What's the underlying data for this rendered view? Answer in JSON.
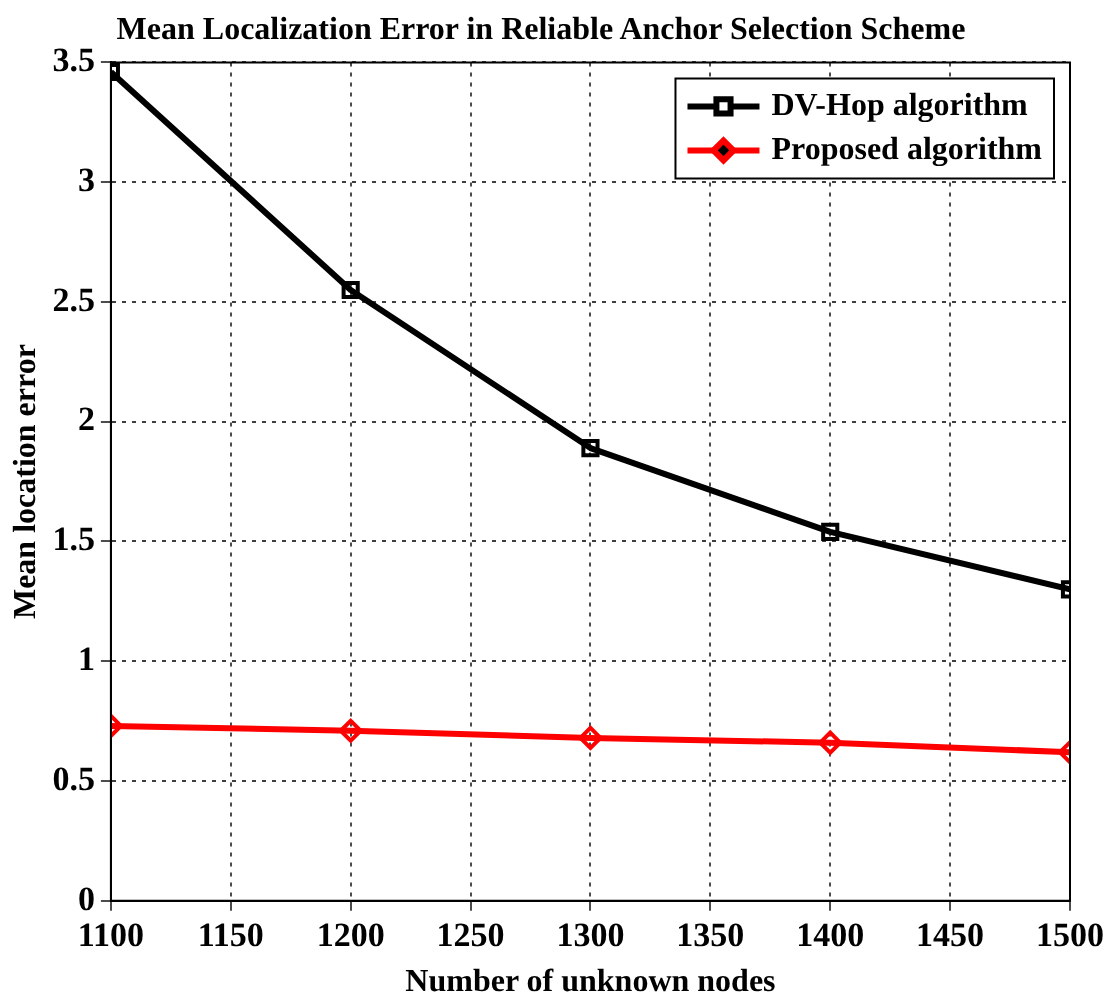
{
  "chart_data": {
    "type": "line",
    "title": "Mean Localization Error in Reliable Anchor Selection Scheme",
    "xlabel": "Number of unknown nodes",
    "ylabel": "Mean location error",
    "x": [
      1100,
      1200,
      1300,
      1400,
      1500
    ],
    "series": [
      {
        "name": "DV-Hop algorithm",
        "color": "#000000",
        "marker": "square",
        "values": [
          3.46,
          2.55,
          1.89,
          1.54,
          1.3
        ]
      },
      {
        "name": "Proposed algorithm",
        "color": "#ff0000",
        "marker": "diamond",
        "values": [
          0.73,
          0.71,
          0.68,
          0.66,
          0.62
        ]
      }
    ],
    "xlim": [
      1100,
      1500
    ],
    "xticks": [
      1100,
      1150,
      1200,
      1250,
      1300,
      1350,
      1400,
      1450,
      1500
    ],
    "ylim": [
      0,
      3.5
    ],
    "yticks": [
      0,
      0.5,
      1,
      1.5,
      2,
      2.5,
      3,
      3.5
    ],
    "grid": true,
    "legend": "top right",
    "line_style": "solid"
  }
}
